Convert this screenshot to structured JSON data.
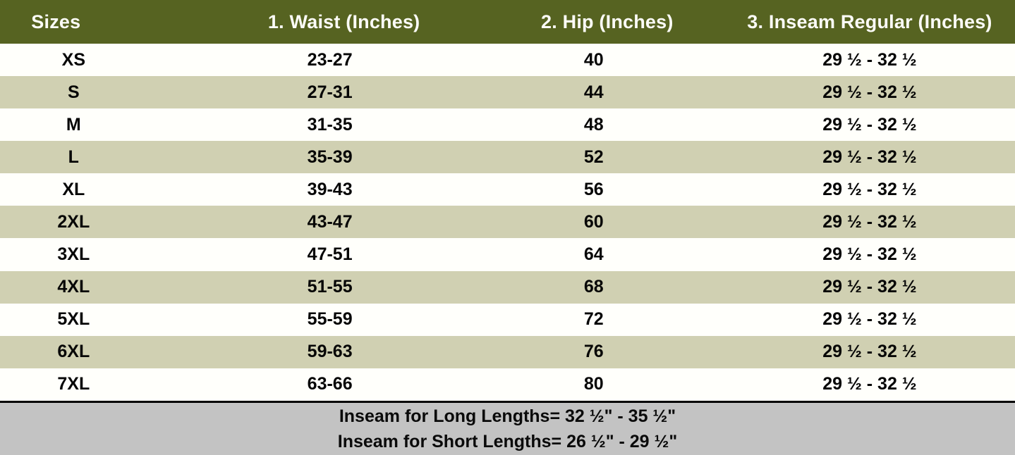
{
  "colors": {
    "header_bg": "#566321",
    "header_text": "#fcfcf7",
    "row_bg": "#fffffb",
    "row_alt_bg": "#d0d0b2",
    "footer_bg": "#c3c3c3",
    "footer_border": "#000000",
    "body_text": "#060606"
  },
  "chart_data": {
    "type": "table",
    "columns": [
      "Sizes",
      "1. Waist (Inches)",
      "2. Hip (Inches)",
      "3. Inseam Regular (Inches)"
    ],
    "rows": [
      {
        "size": "XS",
        "waist": "23-27",
        "hip": "40",
        "inseam": "29 ½ - 32 ½"
      },
      {
        "size": "S",
        "waist": "27-31",
        "hip": "44",
        "inseam": "29 ½ - 32 ½"
      },
      {
        "size": "M",
        "waist": "31-35",
        "hip": "48",
        "inseam": "29 ½ - 32 ½"
      },
      {
        "size": "L",
        "waist": "35-39",
        "hip": "52",
        "inseam": "29 ½ - 32 ½"
      },
      {
        "size": "XL",
        "waist": "39-43",
        "hip": "56",
        "inseam": "29 ½ - 32 ½"
      },
      {
        "size": "2XL",
        "waist": "43-47",
        "hip": "60",
        "inseam": "29 ½ - 32 ½"
      },
      {
        "size": "3XL",
        "waist": "47-51",
        "hip": "64",
        "inseam": "29 ½ - 32 ½"
      },
      {
        "size": "4XL",
        "waist": "51-55",
        "hip": "68",
        "inseam": "29 ½ - 32 ½"
      },
      {
        "size": "5XL",
        "waist": "55-59",
        "hip": "72",
        "inseam": "29 ½ - 32 ½"
      },
      {
        "size": "6XL",
        "waist": "59-63",
        "hip": "76",
        "inseam": "29 ½ - 32 ½"
      },
      {
        "size": "7XL",
        "waist": "63-66",
        "hip": "80",
        "inseam": "29 ½ - 32 ½"
      }
    ],
    "annotations": [
      "Inseam for Long Lengths= 32 ½\" - 35 ½\"",
      "Inseam for Short Lengths= 26 ½\" - 29 ½\""
    ]
  }
}
